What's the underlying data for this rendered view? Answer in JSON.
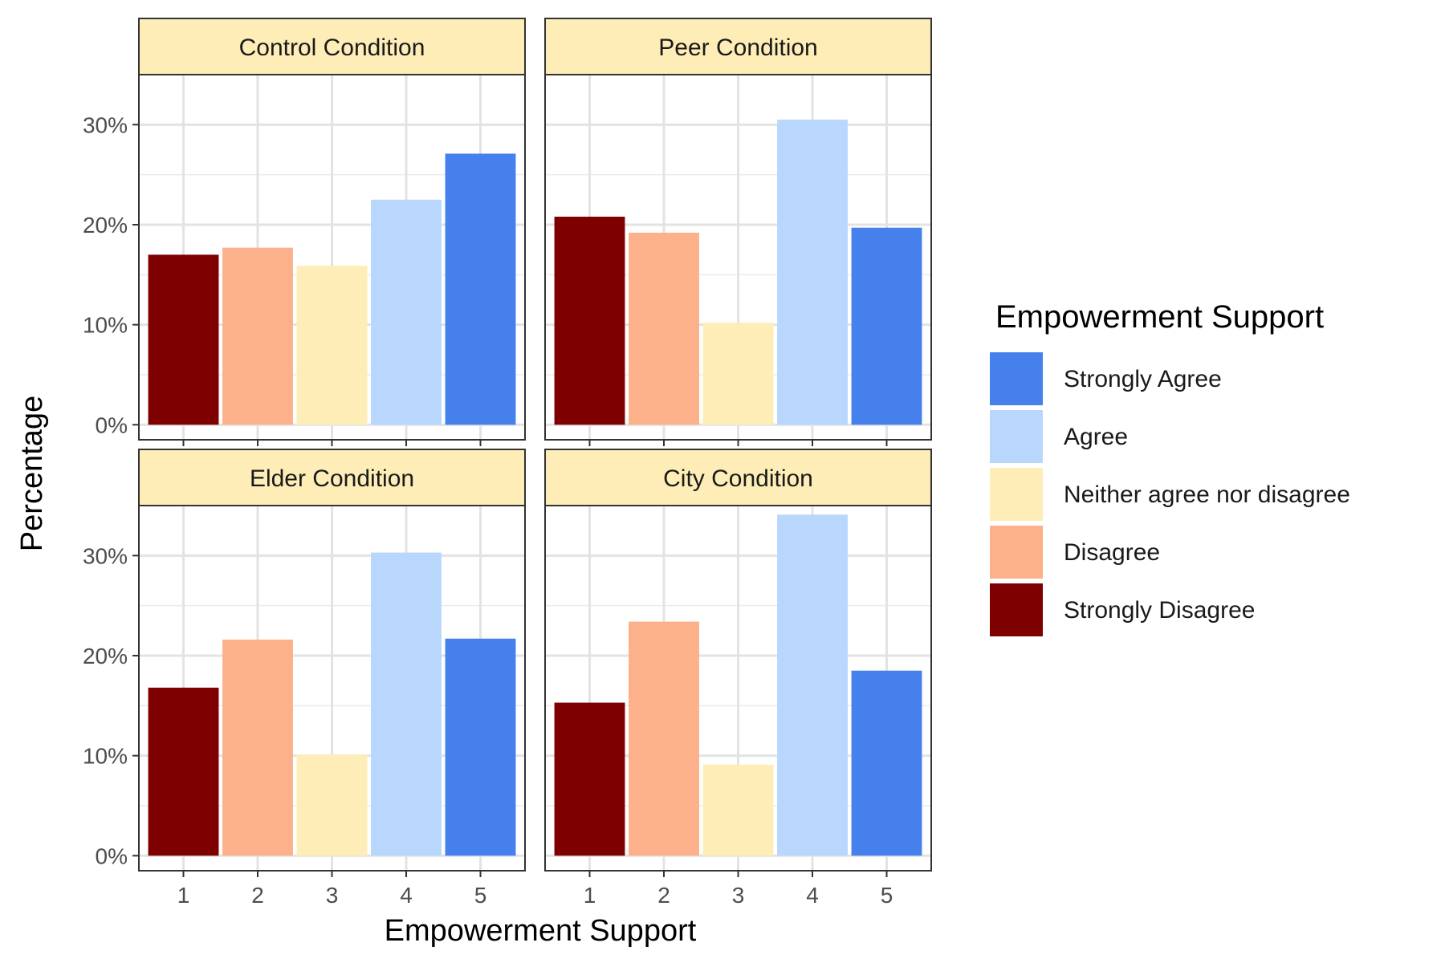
{
  "chart_data": {
    "type": "bar",
    "x_label": "Empowerment Support",
    "y_label": "Percentage",
    "categories": [
      "1",
      "2",
      "3",
      "4",
      "5"
    ],
    "y_ticks": [
      "0%",
      "10%",
      "20%",
      "30%"
    ],
    "y_tick_values": [
      0,
      10,
      20,
      30
    ],
    "ylim": [
      -1.5,
      35
    ],
    "grid": true,
    "legend": {
      "title": "Empowerment Support",
      "position": "right",
      "items": [
        {
          "label": "Strongly Agree",
          "color": "#4580ed"
        },
        {
          "label": "Agree",
          "color": "#b9d7fd"
        },
        {
          "label": "Neither agree nor disagree",
          "color": "#feedb6"
        },
        {
          "label": "Disagree",
          "color": "#fcb18b"
        },
        {
          "label": "Strongly Disagree",
          "color": "#7f0000"
        }
      ]
    },
    "category_colors": [
      "#7f0000",
      "#fcb18b",
      "#feedb6",
      "#b9d7fd",
      "#4580ed"
    ],
    "panels": [
      {
        "title": "Control Condition",
        "values": [
          17.0,
          17.7,
          15.9,
          22.5,
          27.1
        ]
      },
      {
        "title": "Peer Condition",
        "values": [
          20.8,
          19.2,
          10.2,
          30.5,
          19.7
        ]
      },
      {
        "title": "Elder Condition",
        "values": [
          16.8,
          21.6,
          10.1,
          30.3,
          21.7
        ]
      },
      {
        "title": "City Condition",
        "values": [
          15.3,
          23.4,
          9.1,
          34.1,
          18.5
        ]
      }
    ]
  }
}
